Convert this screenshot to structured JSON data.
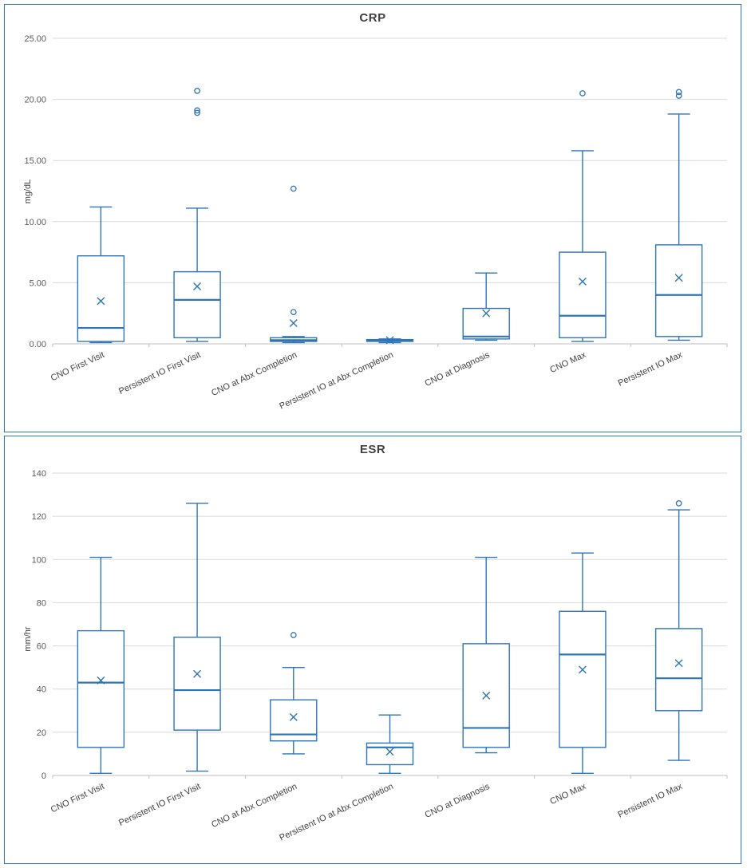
{
  "colors": {
    "box_stroke": "#2E75B6",
    "grid": "#D9D9D9",
    "axis": "#BFBFBF",
    "tick_text": "#595959",
    "label_text": "#404040",
    "panel_border": "#2E75B6"
  },
  "chart_data": [
    {
      "type": "boxplot",
      "title": "CRP",
      "ylabel": "mg/dL",
      "ylim": [
        0,
        25
      ],
      "ystep": 5,
      "tick_decimals": 2,
      "grid": true,
      "legend": "none",
      "categories": [
        "CNO First Visit",
        "Persistent IO First Visit",
        "CNO at Abx Completion",
        "Persistent IO at Abx Completion",
        "CNO at Diagnosis",
        "CNO Max",
        "Persistent IO Max"
      ],
      "series": [
        {
          "name": "CNO First Visit",
          "whisker_low": 0.1,
          "q1": 0.2,
          "median": 1.3,
          "q3": 7.2,
          "whisker_high": 11.2,
          "mean": 3.5,
          "outliers": []
        },
        {
          "name": "Persistent IO First Visit",
          "whisker_low": 0.2,
          "q1": 0.5,
          "median": 3.6,
          "q3": 5.9,
          "whisker_high": 11.1,
          "mean": 4.7,
          "outliers": [
            18.9,
            19.1,
            20.7
          ]
        },
        {
          "name": "CNO at Abx Completion",
          "whisker_low": 0.1,
          "q1": 0.2,
          "median": 0.3,
          "q3": 0.5,
          "whisker_high": 0.6,
          "mean": 1.7,
          "outliers": [
            2.6,
            12.7
          ]
        },
        {
          "name": "Persistent IO at Abx Completion",
          "whisker_low": 0.1,
          "q1": 0.2,
          "median": 0.3,
          "q3": 0.35,
          "whisker_high": 0.4,
          "mean": 0.3,
          "outliers": []
        },
        {
          "name": "CNO at Diagnosis",
          "whisker_low": 0.3,
          "q1": 0.4,
          "median": 0.6,
          "q3": 2.9,
          "whisker_high": 5.8,
          "mean": 2.5,
          "outliers": []
        },
        {
          "name": "CNO Max",
          "whisker_low": 0.2,
          "q1": 0.5,
          "median": 2.3,
          "q3": 7.5,
          "whisker_high": 15.8,
          "mean": 5.1,
          "outliers": [
            20.5
          ]
        },
        {
          "name": "Persistent IO Max",
          "whisker_low": 0.3,
          "q1": 0.6,
          "median": 4.0,
          "q3": 8.1,
          "whisker_high": 18.8,
          "mean": 5.4,
          "outliers": [
            20.3,
            20.6
          ]
        }
      ]
    },
    {
      "type": "boxplot",
      "title": "ESR",
      "ylabel": "mm/hr",
      "ylim": [
        0,
        140
      ],
      "ystep": 20,
      "tick_decimals": 0,
      "grid": true,
      "legend": "none",
      "categories": [
        "CNO First Visit",
        "Persistent IO First Visit",
        "CNO at Abx Completion",
        "Persistent IO at Abx Completion",
        "CNO at Diagnosis",
        "CNO Max",
        "Persistent IO Max"
      ],
      "series": [
        {
          "name": "CNO First Visit",
          "whisker_low": 1,
          "q1": 13,
          "median": 43,
          "q3": 67,
          "whisker_high": 101,
          "mean": 44,
          "outliers": []
        },
        {
          "name": "Persistent IO First Visit",
          "whisker_low": 2,
          "q1": 21,
          "median": 39.5,
          "q3": 64,
          "whisker_high": 126,
          "mean": 47,
          "outliers": []
        },
        {
          "name": "CNO at Abx Completion",
          "whisker_low": 10,
          "q1": 16,
          "median": 19,
          "q3": 35,
          "whisker_high": 50,
          "mean": 27,
          "outliers": [
            65
          ]
        },
        {
          "name": "Persistent IO at Abx Completion",
          "whisker_low": 1,
          "q1": 5,
          "median": 13,
          "q3": 15,
          "whisker_high": 28,
          "mean": 11,
          "outliers": []
        },
        {
          "name": "CNO at Diagnosis",
          "whisker_low": 10.5,
          "q1": 13,
          "median": 22,
          "q3": 61,
          "whisker_high": 101,
          "mean": 37,
          "outliers": []
        },
        {
          "name": "CNO Max",
          "whisker_low": 1,
          "q1": 13,
          "median": 56,
          "q3": 76,
          "whisker_high": 103,
          "mean": 49,
          "outliers": []
        },
        {
          "name": "Persistent IO Max",
          "whisker_low": 7,
          "q1": 30,
          "median": 45,
          "q3": 68,
          "whisker_high": 123,
          "mean": 52,
          "outliers": [
            126
          ]
        }
      ]
    }
  ]
}
